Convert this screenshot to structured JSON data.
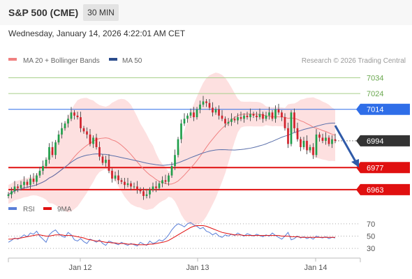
{
  "header": {
    "title": "S&P 500 (CME)",
    "interval": "30 MIN",
    "datetime": "Wednesday, January 14, 2026 4:22:01 AM CET"
  },
  "legend": {
    "ma20": "MA 20 + Bollinger Bands",
    "ma50": "MA 50",
    "rsi": "RSI",
    "rsi_ma": "9MA",
    "copyright": "Research © 2026 Trading Central"
  },
  "colors": {
    "resistance": "#a7cf8a",
    "pivot": "#2f6ee8",
    "support": "#e01010",
    "last": "#333333",
    "bollinger_fill": "#fde0e0",
    "ma20_line": "#f08080",
    "ma50_line": "#5a6faa",
    "rsi_line": "#5a7fd8",
    "rsi_ma_line": "#e01010",
    "candle_up": "#1f9e4a",
    "candle_down": "#d0202a",
    "arrow": "#2f5aa8"
  },
  "chart_data": {
    "type": "candlestick",
    "x_labels": [
      "Jan 12",
      "Jan 13",
      "Jan 14"
    ],
    "ylim": [
      6955,
      7040
    ],
    "levels": [
      {
        "kind": "resistance",
        "value": 7034,
        "label": "7034"
      },
      {
        "kind": "resistance",
        "value": 7024,
        "label": "7024"
      },
      {
        "kind": "pivot",
        "value": 7014,
        "label": "7014"
      },
      {
        "kind": "last",
        "value": 6994,
        "label": "6994"
      },
      {
        "kind": "support",
        "value": 6977,
        "label": "6977"
      },
      {
        "kind": "support",
        "value": 6963,
        "label": "6963"
      }
    ],
    "close": [
      6960,
      6962,
      6965,
      6964,
      6966,
      6968,
      6966,
      6970,
      6968,
      6972,
      6975,
      6978,
      6982,
      6990,
      6985,
      6993,
      6998,
      7002,
      7005,
      7008,
      7012,
      7010,
      7009,
      7002,
      7000,
      6998,
      6992,
      6996,
      6990,
      6984,
      6980,
      6982,
      6975,
      6970,
      6972,
      6969,
      6968,
      6966,
      6967,
      6965,
      6965,
      6963,
      6962,
      6959,
      6960,
      6963,
      6965,
      6964,
      6967,
      6969,
      6968,
      6972,
      6978,
      6985,
      6995,
      7005,
      7008,
      7010,
      7012,
      7009,
      7014,
      7017,
      7019,
      7018,
      7015,
      7012,
      7014,
      7010,
      7008,
      7005,
      7006,
      7008,
      7007,
      7009,
      7008,
      7010,
      7009,
      7011,
      7010,
      7009,
      7011,
      7008,
      7010,
      7012,
      7008,
      7014,
      7012,
      7009,
      7002,
      6992,
      7012,
      7002,
      6995,
      6990,
      6994,
      6988,
      6990,
      6985,
      6998,
      6996,
      6994,
      6996,
      6992,
      6995,
      6994
    ],
    "rsi_ylim": [
      20,
      80
    ],
    "rsi_ticks": [
      70,
      50,
      30
    ],
    "rsi": [
      40,
      43,
      47,
      45,
      48,
      52,
      49,
      55,
      53,
      58,
      50,
      45,
      40,
      52,
      57,
      60,
      54,
      50,
      48,
      56,
      52,
      44,
      42,
      46,
      41,
      38,
      45,
      43,
      40,
      44,
      38,
      35,
      42,
      40,
      38,
      36,
      40,
      37,
      35,
      38,
      36,
      34,
      40,
      37,
      35,
      42,
      38,
      40,
      44,
      42,
      46,
      52,
      60,
      66,
      70,
      68,
      65,
      70,
      72,
      68,
      66,
      62,
      64,
      58,
      56,
      52,
      55,
      50,
      48,
      52,
      50,
      53,
      51,
      55,
      52,
      50,
      54,
      52,
      50,
      53,
      51,
      49,
      52,
      50,
      55,
      51,
      48,
      45,
      50,
      56,
      44,
      46,
      50,
      47,
      49,
      46,
      48,
      45,
      50,
      48,
      47,
      49,
      46,
      48,
      47
    ],
    "rsi_ma": [
      45,
      45,
      46,
      46,
      47,
      48,
      49,
      50,
      51,
      52,
      52,
      51,
      50,
      50,
      51,
      52,
      52,
      52,
      51,
      51,
      51,
      50,
      49,
      48,
      47,
      45,
      44,
      43,
      42,
      42,
      41,
      40,
      40,
      39,
      39,
      38,
      38,
      38,
      37,
      37,
      37,
      36,
      36,
      36,
      36,
      37,
      37,
      38,
      39,
      40,
      41,
      43,
      46,
      49,
      52,
      55,
      58,
      61,
      64,
      66,
      67,
      67,
      67,
      66,
      64,
      62,
      60,
      58,
      56,
      55,
      54,
      53,
      52,
      52,
      52,
      51,
      51,
      51,
      51,
      51,
      51,
      51,
      51,
      51,
      51,
      51,
      51,
      50,
      50,
      50,
      49,
      49,
      49,
      48,
      48,
      48,
      48,
      48,
      48,
      48,
      48,
      48,
      48,
      48,
      48
    ]
  }
}
